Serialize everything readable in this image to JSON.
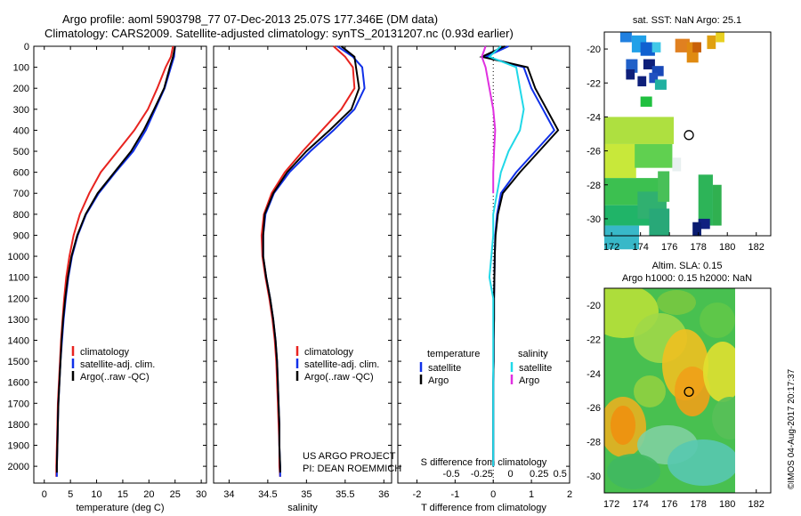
{
  "title": {
    "line1": "Argo profile: aoml 5903798_77 07-Dec-2013 25.07S 177.346E (DM data)",
    "line2": "Climatology: CARS2009. Satellite-adjusted climatology: synTS_20131207.nc (0.93d earlier)"
  },
  "side_stamp": "©IMOS 04-Aug-2017 20:17:37",
  "colors": {
    "climatology": "#e8231f",
    "satellite": "#1030e8",
    "argo": "#000000",
    "s_satellite": "#20d8e8",
    "s_argo": "#e030e0"
  },
  "chart_data": [
    {
      "type": "line",
      "name": "temperature-profile",
      "xlabel": "temperature (deg C)",
      "xlim": [
        -2,
        31
      ],
      "xticks": [
        0,
        5,
        10,
        15,
        20,
        25,
        30
      ],
      "ylim": [
        2080,
        0
      ],
      "yticks": [
        0,
        100,
        200,
        300,
        400,
        500,
        600,
        700,
        800,
        900,
        1000,
        1100,
        1200,
        1300,
        1400,
        1500,
        1600,
        1700,
        1800,
        1900,
        2000
      ],
      "legend": [
        "climatology",
        "satellite-adj. clim.",
        "Argo(..raw -QC)"
      ],
      "series": [
        {
          "name": "climatology",
          "color": "#e8231f",
          "points": [
            [
              24.6,
              0
            ],
            [
              24.2,
              50
            ],
            [
              23.2,
              100
            ],
            [
              21.6,
              200
            ],
            [
              19.8,
              300
            ],
            [
              17.2,
              400
            ],
            [
              14.0,
              500
            ],
            [
              10.8,
              600
            ],
            [
              8.6,
              700
            ],
            [
              6.8,
              800
            ],
            [
              5.6,
              900
            ],
            [
              4.8,
              1000
            ],
            [
              4.2,
              1100
            ],
            [
              3.8,
              1200
            ],
            [
              3.5,
              1300
            ],
            [
              3.2,
              1400
            ],
            [
              3.0,
              1500
            ],
            [
              2.8,
              1600
            ],
            [
              2.6,
              1700
            ],
            [
              2.5,
              1800
            ],
            [
              2.4,
              1900
            ],
            [
              2.3,
              2000
            ],
            [
              2.3,
              2050
            ]
          ]
        },
        {
          "name": "satellite-adj. clim.",
          "color": "#1030e8",
          "points": [
            [
              25.0,
              0
            ],
            [
              24.8,
              50
            ],
            [
              24.2,
              100
            ],
            [
              23.0,
              200
            ],
            [
              21.2,
              300
            ],
            [
              19.4,
              400
            ],
            [
              17.0,
              500
            ],
            [
              13.6,
              600
            ],
            [
              10.4,
              700
            ],
            [
              8.0,
              800
            ],
            [
              6.4,
              900
            ],
            [
              5.3,
              1000
            ],
            [
              4.6,
              1100
            ],
            [
              4.1,
              1200
            ],
            [
              3.7,
              1300
            ],
            [
              3.4,
              1400
            ],
            [
              3.1,
              1500
            ],
            [
              2.9,
              1600
            ],
            [
              2.7,
              1700
            ],
            [
              2.6,
              1800
            ],
            [
              2.5,
              1900
            ],
            [
              2.4,
              2000
            ],
            [
              2.4,
              2050
            ]
          ]
        },
        {
          "name": "Argo(..raw -QC)",
          "color": "#000000",
          "points": [
            [
              25.0,
              0
            ],
            [
              24.6,
              50
            ],
            [
              24.0,
              100
            ],
            [
              22.9,
              200
            ],
            [
              21.0,
              300
            ],
            [
              19.0,
              400
            ],
            [
              16.6,
              500
            ],
            [
              13.4,
              600
            ],
            [
              10.2,
              700
            ],
            [
              7.9,
              800
            ],
            [
              6.3,
              900
            ],
            [
              5.2,
              1000
            ],
            [
              4.5,
              1100
            ],
            [
              4.0,
              1200
            ],
            [
              3.6,
              1300
            ],
            [
              3.3,
              1400
            ],
            [
              3.1,
              1500
            ],
            [
              2.9,
              1600
            ],
            [
              2.7,
              1700
            ],
            [
              2.6,
              1800
            ],
            [
              2.5,
              1900
            ],
            [
              2.4,
              2000
            ],
            [
              2.4,
              2030
            ]
          ]
        }
      ]
    },
    {
      "type": "line",
      "name": "salinity-profile",
      "xlabel": "salinity",
      "xlim": [
        33.8,
        36.1
      ],
      "xticks": [
        34,
        34.5,
        35,
        35.5,
        36
      ],
      "ylim": [
        2080,
        0
      ],
      "legend": [
        "climatology",
        "satellite-adj. clim.",
        "Argo(..raw -QC)"
      ],
      "annotation": [
        "US ARGO PROJECT",
        "PI: DEAN ROEMMICH"
      ],
      "series": [
        {
          "name": "climatology",
          "color": "#e8231f",
          "points": [
            [
              35.35,
              0
            ],
            [
              35.5,
              50
            ],
            [
              35.6,
              100
            ],
            [
              35.62,
              200
            ],
            [
              35.45,
              300
            ],
            [
              35.2,
              400
            ],
            [
              34.95,
              500
            ],
            [
              34.72,
              600
            ],
            [
              34.55,
              700
            ],
            [
              34.45,
              800
            ],
            [
              34.42,
              900
            ],
            [
              34.43,
              1000
            ],
            [
              34.47,
              1100
            ],
            [
              34.52,
              1200
            ],
            [
              34.56,
              1300
            ],
            [
              34.59,
              1400
            ],
            [
              34.61,
              1500
            ],
            [
              34.62,
              1600
            ],
            [
              34.63,
              1700
            ],
            [
              34.64,
              1800
            ],
            [
              34.65,
              1900
            ],
            [
              34.65,
              2000
            ],
            [
              34.66,
              2050
            ]
          ]
        },
        {
          "name": "satellite-adj. clim.",
          "color": "#1030e8",
          "points": [
            [
              35.4,
              0
            ],
            [
              35.6,
              50
            ],
            [
              35.72,
              100
            ],
            [
              35.75,
              200
            ],
            [
              35.62,
              300
            ],
            [
              35.35,
              400
            ],
            [
              35.05,
              500
            ],
            [
              34.78,
              600
            ],
            [
              34.58,
              700
            ],
            [
              34.47,
              800
            ],
            [
              34.44,
              900
            ],
            [
              34.44,
              1000
            ],
            [
              34.48,
              1100
            ],
            [
              34.53,
              1200
            ],
            [
              34.57,
              1300
            ],
            [
              34.6,
              1400
            ],
            [
              34.62,
              1500
            ],
            [
              34.63,
              1600
            ],
            [
              34.64,
              1700
            ],
            [
              34.65,
              1800
            ],
            [
              34.65,
              1900
            ],
            [
              34.66,
              2000
            ],
            [
              34.66,
              2050
            ]
          ]
        },
        {
          "name": "Argo(..raw -QC)",
          "color": "#000000",
          "points": [
            [
              35.45,
              0
            ],
            [
              35.62,
              50
            ],
            [
              35.64,
              100
            ],
            [
              35.68,
              200
            ],
            [
              35.58,
              300
            ],
            [
              35.3,
              400
            ],
            [
              35.0,
              500
            ],
            [
              34.75,
              600
            ],
            [
              34.57,
              700
            ],
            [
              34.46,
              800
            ],
            [
              34.44,
              900
            ],
            [
              34.44,
              1000
            ],
            [
              34.48,
              1100
            ],
            [
              34.53,
              1200
            ],
            [
              34.57,
              1300
            ],
            [
              34.6,
              1400
            ],
            [
              34.62,
              1500
            ],
            [
              34.63,
              1600
            ],
            [
              34.64,
              1700
            ],
            [
              34.65,
              1800
            ],
            [
              34.65,
              1900
            ],
            [
              34.66,
              2000
            ],
            [
              34.66,
              2030
            ]
          ]
        }
      ]
    },
    {
      "type": "line",
      "name": "difference-profile",
      "xlabel": "T difference from climatology",
      "xlabel_top": "S difference from climatology",
      "xlim": [
        -2.5,
        2.0
      ],
      "xticks": [
        -2,
        -1,
        0,
        1,
        2
      ],
      "s_ticks": [
        "-0.5",
        "-0.25",
        "0",
        "0.25",
        "0.5"
      ],
      "ylim": [
        2080,
        0
      ],
      "legend_titles": [
        "temperature",
        "salinity"
      ],
      "legend": [
        "satellite",
        "Argo",
        "satellite",
        "Argo"
      ],
      "series": [
        {
          "name": "T satellite",
          "color": "#1030e8",
          "points": [
            [
              0.4,
              0
            ],
            [
              -0.2,
              50
            ],
            [
              0.8,
              100
            ],
            [
              1.0,
              200
            ],
            [
              1.3,
              300
            ],
            [
              1.6,
              400
            ],
            [
              1.1,
              500
            ],
            [
              0.6,
              600
            ],
            [
              0.2,
              700
            ],
            [
              0.1,
              800
            ],
            [
              0.05,
              900
            ],
            [
              0.04,
              1000
            ],
            [
              0.03,
              1100
            ],
            [
              0.02,
              1200
            ],
            [
              0.02,
              1300
            ],
            [
              0.01,
              1400
            ],
            [
              0.01,
              1500
            ],
            [
              0.0,
              1600
            ],
            [
              0.0,
              1700
            ],
            [
              0.0,
              1800
            ],
            [
              0.0,
              1900
            ],
            [
              0.0,
              2000
            ]
          ]
        },
        {
          "name": "T Argo",
          "color": "#000000",
          "points": [
            [
              0.3,
              0
            ],
            [
              -0.3,
              50
            ],
            [
              0.9,
              100
            ],
            [
              1.1,
              200
            ],
            [
              1.4,
              300
            ],
            [
              1.7,
              400
            ],
            [
              1.2,
              500
            ],
            [
              0.7,
              600
            ],
            [
              0.25,
              700
            ],
            [
              0.12,
              800
            ],
            [
              0.06,
              900
            ],
            [
              0.04,
              1000
            ],
            [
              0.03,
              1100
            ],
            [
              0.02,
              1200
            ],
            [
              0.02,
              1300
            ],
            [
              0.01,
              1400
            ],
            [
              0.01,
              1500
            ],
            [
              0.0,
              1600
            ],
            [
              0.0,
              1700
            ],
            [
              0.0,
              1800
            ],
            [
              0.0,
              1900
            ],
            [
              0.0,
              2000
            ]
          ]
        },
        {
          "name": "S satellite",
          "color": "#20d8e8",
          "points": [
            [
              0.2,
              0
            ],
            [
              -0.1,
              50
            ],
            [
              0.6,
              100
            ],
            [
              0.7,
              200
            ],
            [
              0.8,
              300
            ],
            [
              0.7,
              400
            ],
            [
              0.4,
              500
            ],
            [
              0.2,
              600
            ],
            [
              0.1,
              700
            ],
            [
              0.0,
              800
            ],
            [
              0.0,
              900
            ],
            [
              -0.05,
              1000
            ],
            [
              -0.1,
              1100
            ],
            [
              0.0,
              1200
            ],
            [
              0.0,
              1300
            ],
            [
              0.0,
              1400
            ],
            [
              0.0,
              1500
            ],
            [
              0.0,
              1600
            ],
            [
              0.0,
              1700
            ],
            [
              0.0,
              1800
            ],
            [
              0.0,
              1900
            ],
            [
              0.0,
              2000
            ]
          ]
        },
        {
          "name": "S Argo",
          "color": "#e030e0",
          "points": [
            [
              -0.2,
              0
            ],
            [
              -0.3,
              50
            ],
            [
              -0.2,
              100
            ],
            [
              -0.1,
              200
            ],
            [
              0.0,
              300
            ],
            [
              0.05,
              400
            ],
            [
              0.02,
              500
            ],
            [
              0.0,
              600
            ],
            [
              0.0,
              700
            ]
          ]
        }
      ]
    },
    {
      "type": "heatmap",
      "name": "sst-map",
      "title": "sat. SST: NaN Argo: 25.1",
      "xticks": [
        172,
        174,
        176,
        178,
        180,
        182
      ],
      "yticks": [
        -20,
        -22,
        -24,
        -26,
        -28,
        -30
      ],
      "xlim": [
        171.5,
        183
      ],
      "ylim": [
        -31,
        -19
      ],
      "profile_location": {
        "lon": 177.346,
        "lat": -25.07
      }
    },
    {
      "type": "heatmap",
      "name": "sla-map",
      "title_line1": "Altim. SLA: 0.15",
      "title_line2": "Argo h1000: 0.15 h2000: NaN",
      "xticks": [
        172,
        174,
        176,
        178,
        180,
        182
      ],
      "yticks": [
        -20,
        -22,
        -24,
        -26,
        -28,
        -30
      ],
      "xlim": [
        171.5,
        183
      ],
      "ylim": [
        -31,
        -19
      ],
      "profile_location": {
        "lon": 177.346,
        "lat": -25.07
      }
    }
  ]
}
